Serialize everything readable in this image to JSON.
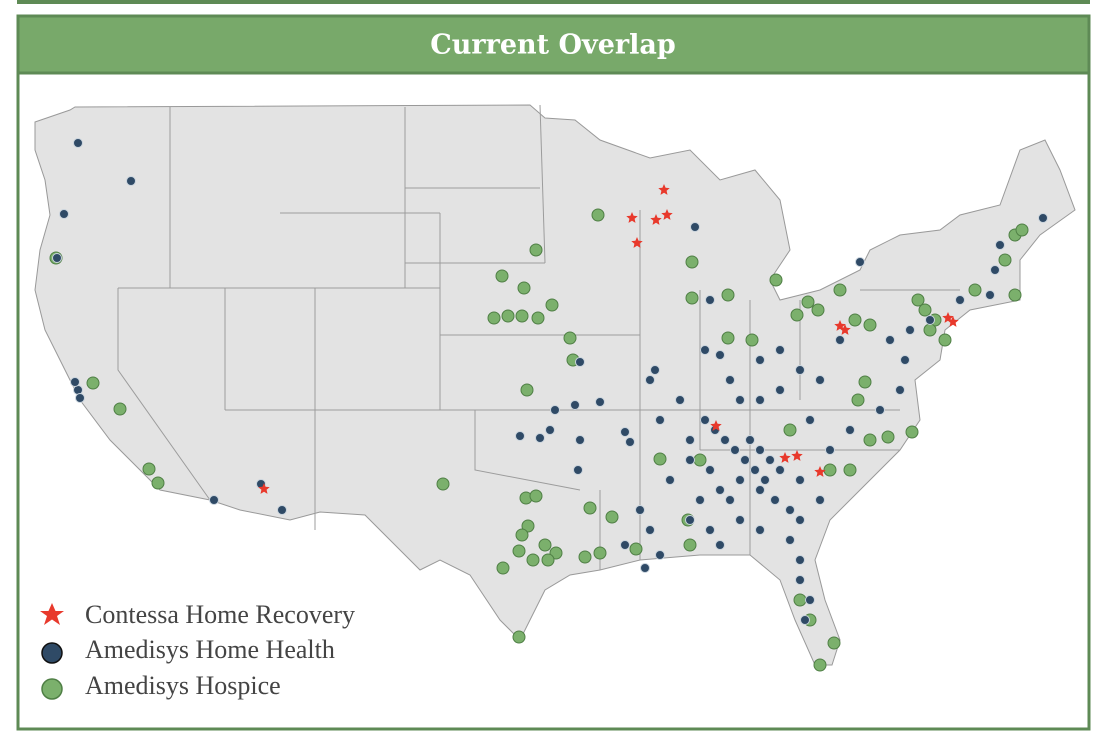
{
  "header": {
    "title": "Current Overlap"
  },
  "legend": {
    "items": [
      {
        "label": "Contessa Home Recovery"
      },
      {
        "label": "Amedisys Home Health"
      },
      {
        "label": "Amedisys Hospice"
      }
    ]
  }
}
